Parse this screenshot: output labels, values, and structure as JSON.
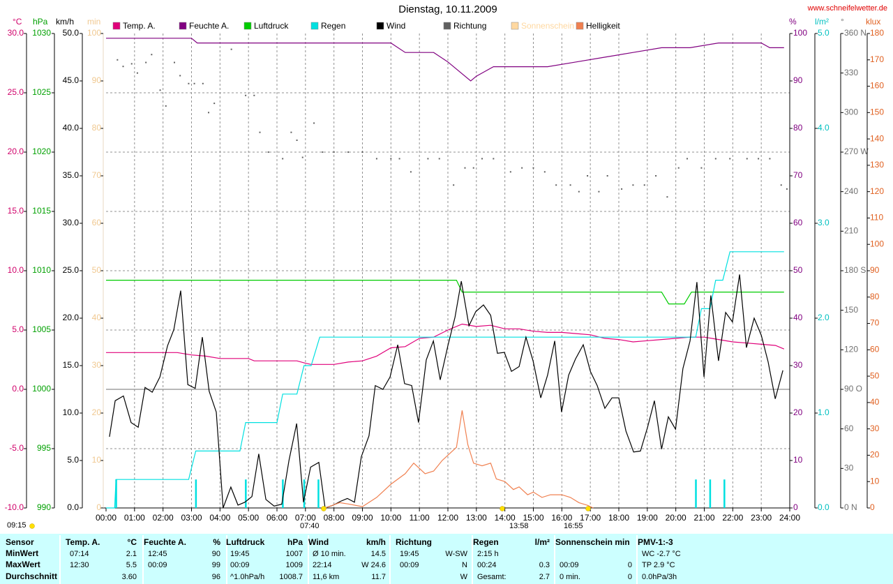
{
  "chart_data": {
    "type": "line",
    "title": "Dienstag, 10.11.2009",
    "source": "www.schneifelwetter.de",
    "xlim": [
      0,
      24
    ],
    "xticks": [
      {
        "value": 0,
        "label": "00:00"
      },
      {
        "value": 1,
        "label": "01:00"
      },
      {
        "value": 2,
        "label": "02:00"
      },
      {
        "value": 3,
        "label": "03:00"
      },
      {
        "value": 4,
        "label": "04:00"
      },
      {
        "value": 5,
        "label": "05:00"
      },
      {
        "value": 6,
        "label": "06:00"
      },
      {
        "value": 7,
        "label": "07:00"
      },
      {
        "value": 8,
        "label": "08:00"
      },
      {
        "value": 9,
        "label": "09:00"
      },
      {
        "value": 10,
        "label": "10:00"
      },
      {
        "value": 11,
        "label": "11:00"
      },
      {
        "value": 12,
        "label": "12:00"
      },
      {
        "value": 13,
        "label": "13:00"
      },
      {
        "value": 14,
        "label": "14:00"
      },
      {
        "value": 15,
        "label": "15:00"
      },
      {
        "value": 16,
        "label": "16:00"
      },
      {
        "value": 17,
        "label": "17:00"
      },
      {
        "value": 18,
        "label": "18:00"
      },
      {
        "value": 19,
        "label": "19:00"
      },
      {
        "value": 20,
        "label": "20:00"
      },
      {
        "value": 21,
        "label": "21:00"
      },
      {
        "value": 22,
        "label": "22:00"
      },
      {
        "value": 23,
        "label": "23:00"
      },
      {
        "value": 24,
        "label": "24:00"
      }
    ],
    "grid": true,
    "axes": [
      {
        "unit": "°C",
        "side": "left",
        "color": "#d0006a",
        "grid": true,
        "lim": [
          -10,
          30
        ],
        "ticks": [
          {
            "value": -10,
            "label": "-10.0"
          },
          {
            "value": -5,
            "label": "-5.0"
          },
          {
            "value": 0,
            "label": "0.0"
          },
          {
            "value": 5,
            "label": "5.0"
          },
          {
            "value": 10,
            "label": "10.0"
          },
          {
            "value": 15,
            "label": "15.0"
          },
          {
            "value": 20,
            "label": "20.0"
          },
          {
            "value": 25,
            "label": "25.0"
          },
          {
            "value": 30,
            "label": "30.0"
          }
        ]
      },
      {
        "unit": "hPa",
        "side": "left",
        "color": "#00a000",
        "lim": [
          990,
          1030
        ],
        "ticks": [
          990,
          995,
          1000,
          1005,
          1010,
          1015,
          1020,
          1025,
          1030
        ]
      },
      {
        "unit": "km/h",
        "side": "left",
        "color": "#000000",
        "lim": [
          0,
          50
        ],
        "ticks": [
          {
            "value": 0,
            "label": "0.0"
          },
          {
            "value": 5,
            "label": "5.0"
          },
          {
            "value": 10,
            "label": "10.0"
          },
          {
            "value": 15,
            "label": "15.0"
          },
          {
            "value": 20,
            "label": "20.0"
          },
          {
            "value": 25,
            "label": "25.0"
          },
          {
            "value": 30,
            "label": "30.0"
          },
          {
            "value": 35,
            "label": "35.0"
          },
          {
            "value": 40,
            "label": "40.0"
          },
          {
            "value": 45,
            "label": "45.0"
          },
          {
            "value": 50,
            "label": "50.0"
          }
        ]
      },
      {
        "unit": "min",
        "side": "left",
        "color": "#f0c890",
        "lim": [
          0,
          100
        ],
        "ticks": [
          0,
          10,
          20,
          30,
          40,
          50,
          60,
          70,
          80,
          90,
          100
        ]
      },
      {
        "unit": "%",
        "side": "right",
        "color": "#800080",
        "lim": [
          0,
          100
        ],
        "ticks": [
          0,
          10,
          20,
          30,
          40,
          50,
          60,
          70,
          80,
          90,
          100
        ]
      },
      {
        "unit": "l/m²",
        "side": "right",
        "color": "#00c0c0",
        "lim": [
          0,
          5
        ],
        "ticks": [
          {
            "value": 0,
            "label": "0.0"
          },
          {
            "value": 1,
            "label": "1.0"
          },
          {
            "value": 2,
            "label": "2.0"
          },
          {
            "value": 3,
            "label": "3.0"
          },
          {
            "value": 4,
            "label": "4.0"
          },
          {
            "value": 5,
            "label": "5.0"
          }
        ]
      },
      {
        "unit": "°",
        "side": "right",
        "color": "#707070",
        "lim": [
          0,
          360
        ],
        "ticks": [
          {
            "value": 0,
            "label": "0   N"
          },
          30,
          60,
          {
            "value": 90,
            "label": "90   O"
          },
          120,
          150,
          {
            "value": 180,
            "label": "180 S"
          },
          210,
          240,
          {
            "value": 270,
            "label": "270 W"
          },
          300,
          330,
          {
            "value": 360,
            "label": "360 N"
          }
        ]
      },
      {
        "unit": "klux",
        "side": "right",
        "color": "#e06020",
        "lim": [
          0,
          180
        ],
        "ticks": [
          0,
          10,
          20,
          30,
          40,
          50,
          60,
          70,
          80,
          90,
          100,
          110,
          120,
          130,
          140,
          150,
          160,
          170,
          180
        ]
      }
    ],
    "series": [
      {
        "name": "Temp. A.",
        "color": "#e0007a",
        "axis": "°C",
        "style": "line",
        "x": [
          0,
          2.5,
          3.0,
          3.5,
          4.0,
          5.0,
          5.2,
          6.0,
          6.7,
          7.0,
          7.2,
          8.0,
          8.5,
          9.0,
          9.5,
          10.0,
          10.5,
          11.0,
          11.5,
          12.0,
          12.5,
          13.0,
          13.5,
          14.0,
          14.5,
          15.0,
          15.5,
          16.0,
          16.5,
          17.0,
          17.5,
          18.0,
          18.5,
          19.0,
          19.5,
          20.0,
          20.5,
          21.0,
          21.5,
          22.0,
          22.5,
          23.0,
          23.5,
          23.8
        ],
        "values": [
          3.1,
          3.1,
          2.9,
          2.8,
          2.6,
          2.6,
          2.4,
          2.4,
          2.4,
          2.2,
          2.1,
          2.1,
          2.3,
          2.4,
          2.8,
          3.5,
          3.6,
          4.3,
          4.4,
          5.0,
          5.5,
          5.3,
          5.4,
          5.1,
          5.1,
          4.9,
          4.8,
          4.8,
          4.7,
          4.6,
          4.3,
          4.2,
          4.0,
          4.1,
          4.2,
          4.3,
          4.4,
          4.4,
          4.2,
          4.0,
          3.9,
          3.8,
          3.7,
          3.4
        ]
      },
      {
        "name": "Feuchte A.",
        "color": "#800080",
        "axis": "%",
        "style": "line",
        "x": [
          0,
          3.0,
          3.2,
          10.0,
          10.5,
          11.5,
          12.0,
          12.8,
          13.0,
          13.3,
          13.6,
          14.5,
          15.5,
          16.5,
          17.5,
          18.5,
          19.5,
          20.5,
          21.5,
          23.0,
          23.3,
          23.8
        ],
        "values": [
          99,
          99,
          98,
          98,
          96,
          96,
          94,
          90,
          91,
          92,
          93,
          93,
          93,
          94,
          95,
          96,
          97,
          97,
          98,
          98,
          97,
          97
        ]
      },
      {
        "name": "Luftdruck",
        "color": "#00cc00",
        "axis": "hPa",
        "style": "line",
        "x": [
          0,
          12.3,
          12.5,
          19.5,
          19.75,
          20.3,
          20.55,
          23.8
        ],
        "values": [
          1009.2,
          1009.2,
          1008.2,
          1008.2,
          1007.2,
          1007.2,
          1008.2,
          1008.2
        ]
      },
      {
        "name": "Regen",
        "color": "#00e0e0",
        "axis": "l/m²",
        "style": "line",
        "x": [
          0,
          0.3,
          0.35,
          2.9,
          3.15,
          4.7,
          4.9,
          6.0,
          6.2,
          6.7,
          6.95,
          7.2,
          7.5,
          20.7,
          20.9,
          21.2,
          21.4,
          21.65,
          21.9,
          23.8
        ],
        "values": [
          0,
          0,
          0.3,
          0.3,
          0.6,
          0.6,
          0.9,
          0.9,
          1.2,
          1.2,
          1.5,
          1.5,
          1.8,
          1.8,
          2.1,
          2.1,
          2.4,
          2.4,
          2.7,
          2.7
        ],
        "bar_x": [
          0.35,
          3.15,
          4.9,
          6.2,
          6.95,
          7.45,
          20.7,
          21.2,
          21.7
        ],
        "bar_values": [
          0.3,
          0.3,
          0.3,
          0.3,
          0.3,
          0.3,
          0.3,
          0.3,
          0.3
        ]
      },
      {
        "name": "Wind",
        "color": "#000000",
        "axis": "km/h",
        "style": "line",
        "x": [
          0.12,
          0.32,
          0.61,
          0.88,
          1.13,
          1.37,
          1.62,
          1.89,
          2.16,
          2.38,
          2.62,
          2.87,
          3.13,
          3.38,
          3.62,
          3.87,
          4.11,
          4.38,
          4.63,
          4.87,
          5.12,
          5.36,
          5.61,
          5.9,
          6.17,
          6.42,
          6.69,
          6.93,
          7.18,
          7.47,
          7.69,
          7.98,
          8.23,
          8.47,
          8.72,
          8.96,
          9.23,
          9.45,
          9.72,
          9.97,
          10.24,
          10.48,
          10.73,
          10.97,
          11.24,
          11.49,
          11.73,
          12.0,
          12.25,
          12.47,
          12.74,
          12.98,
          13.25,
          13.5,
          13.74,
          13.98,
          14.23,
          14.5,
          14.74,
          14.99,
          15.26,
          15.5,
          15.75,
          15.99,
          16.24,
          16.48,
          16.75,
          17.0,
          17.24,
          17.51,
          17.76,
          18.0,
          18.25,
          18.52,
          18.76,
          19.01,
          19.25,
          19.5,
          19.74,
          19.99,
          20.25,
          20.5,
          20.74,
          20.99,
          21.23,
          21.5,
          21.75,
          21.99,
          22.24,
          22.48,
          22.75,
          23.0,
          23.24,
          23.49,
          23.76
        ],
        "values": [
          7.5,
          11.3,
          11.8,
          9.0,
          8.5,
          12.7,
          12.2,
          13.8,
          17.1,
          18.8,
          22.9,
          13.0,
          12.6,
          18.0,
          12.3,
          10.1,
          0,
          2.2,
          0.3,
          0.6,
          1.2,
          5.7,
          0.9,
          0.2,
          0.4,
          5.0,
          8.9,
          0.6,
          4.3,
          4.8,
          0,
          0.3,
          0.7,
          1.0,
          0.6,
          5.4,
          7.6,
          12.9,
          12.5,
          13.8,
          17.2,
          13.1,
          12.9,
          9.0,
          15.6,
          17.6,
          13.5,
          17.1,
          20.1,
          23.9,
          19.2,
          20.7,
          21.4,
          20.3,
          16.3,
          16.4,
          14.4,
          14.9,
          18.0,
          15.5,
          11.6,
          14.0,
          17.6,
          10.1,
          14.0,
          15.7,
          17.2,
          14.4,
          12.9,
          10.5,
          11.6,
          11.6,
          8.1,
          5.9,
          6.0,
          8.5,
          11.3,
          6.2,
          9.6,
          8.3,
          14.7,
          17.6,
          23.8,
          13.8,
          22.4,
          15.5,
          20.6,
          19.6,
          24.6,
          16.9,
          20.0,
          18.2,
          15.4,
          11.5,
          14.5
        ]
      },
      {
        "name": "Richtung",
        "color": "#606060",
        "axis": "°",
        "style": "dots",
        "x": [
          0.4,
          0.6,
          0.9,
          1.1,
          1.4,
          1.6,
          1.9,
          2.1,
          2.4,
          2.6,
          2.9,
          3.1,
          3.4,
          3.6,
          3.8,
          4.4,
          4.9,
          5.2,
          5.4,
          5.7,
          6.2,
          6.5,
          6.7,
          6.9,
          7.3,
          7.6,
          8.0,
          8.5,
          9.0,
          9.5,
          10.0,
          10.3,
          10.7,
          11.3,
          11.7,
          12.2,
          12.6,
          12.9,
          13.2,
          13.6,
          14.2,
          14.6,
          15.0,
          15.4,
          15.8,
          16.3,
          16.6,
          16.9,
          17.3,
          17.6,
          18.1,
          18.5,
          18.9,
          19.3,
          19.7,
          20.1,
          20.4,
          20.9,
          21.4,
          21.9,
          22.5,
          22.9,
          23.3,
          23.7,
          23.9
        ],
        "values": [
          340,
          335,
          337,
          330,
          338,
          344,
          317,
          305,
          338,
          328,
          322,
          322,
          322,
          300,
          307,
          348,
          313,
          313,
          285,
          270,
          265,
          285,
          279,
          266,
          292,
          270,
          270,
          270,
          270,
          265,
          265,
          265,
          255,
          265,
          265,
          245,
          258,
          258,
          265,
          265,
          255,
          258,
          258,
          255,
          245,
          245,
          240,
          252,
          240,
          252,
          242,
          245,
          245,
          252,
          236,
          258,
          265,
          258,
          265,
          265,
          265,
          265,
          265,
          245,
          242
        ]
      },
      {
        "name": "Sonnenschein",
        "color": "#ffd8a0",
        "axis": "min",
        "style": "line",
        "x": [],
        "values": []
      },
      {
        "name": "Helligkeit",
        "color": "#f08050",
        "axis": "klux",
        "style": "line",
        "x": [
          7.7,
          8.2,
          8.5,
          9.0,
          9.5,
          10.0,
          10.5,
          10.8,
          11.0,
          11.2,
          11.5,
          11.8,
          12.0,
          12.3,
          12.5,
          12.7,
          12.9,
          13.2,
          13.5,
          13.7,
          14.0,
          14.3,
          14.5,
          14.8,
          15.0,
          15.3,
          15.6,
          16.0,
          16.3,
          16.6,
          16.9,
          17.1
        ],
        "values": [
          0,
          2,
          1.5,
          0.5,
          4,
          9,
          13,
          17,
          15,
          13,
          14,
          18,
          20,
          23,
          37,
          24,
          17,
          16,
          17,
          11,
          10,
          7,
          8,
          5,
          6,
          4,
          5,
          5,
          4,
          2,
          1,
          0
        ]
      }
    ],
    "annotations": [
      "09:15",
      "07:40",
      "13:58",
      "16:55"
    ]
  },
  "stats": {
    "label": "Sensor",
    "columns": [
      {
        "title": "Temp. A.",
        "unit": "°C"
      },
      {
        "title": "Feuchte A.",
        "unit": "%"
      },
      {
        "title": "Luftdruck",
        "unit": "hPa"
      },
      {
        "title": "Wind",
        "unit": "km/h"
      },
      {
        "title": "Richtung"
      },
      {
        "title": "Regen",
        "unit": "l/m²"
      },
      {
        "title": "Sonnenschein min"
      },
      {
        "title": "PMV-1:-3"
      }
    ],
    "rows": [
      {
        "label": "MinWert",
        "cells": [
          {
            "a": "07:14",
            "b": "2.1"
          },
          {
            "a": "12:45",
            "b": "90"
          },
          {
            "a": "19:45",
            "b": "1007"
          },
          {
            "a": "Ø 10 min.",
            "b": "14.5"
          },
          {
            "a": "19:45",
            "b": "W-SW"
          },
          {
            "a": "2:15 h"
          },
          {},
          {
            "a": "WC -2.7 °C"
          }
        ]
      },
      {
        "label": "MaxWert",
        "cells": [
          {
            "a": "12:30",
            "b": "5.5"
          },
          {
            "a": "00:09",
            "b": "99"
          },
          {
            "a": "00:09",
            "b": "1009"
          },
          {
            "a": "22:14",
            "b": "W 24.6"
          },
          {
            "a": "00:09",
            "b": "N"
          },
          {
            "a": "00:24",
            "b": "0.3"
          },
          {
            "a": "00:09",
            "b": "0"
          },
          {
            "a": "TP 2.9 °C"
          }
        ]
      },
      {
        "label": "Durchschnitt",
        "cells": [
          {
            "b": "3.60"
          },
          {
            "b": "96"
          },
          {
            "a": "^1.0hPa/h",
            "b": "1008.7"
          },
          {
            "a": "11,6 km",
            "b": "11.7"
          },
          {
            "b": "W"
          },
          {
            "a": "Gesamt:",
            "b": "2.7"
          },
          {
            "a": "0 min.",
            "b": "0"
          },
          {
            "a": "0.0hPa/3h"
          }
        ]
      }
    ]
  }
}
